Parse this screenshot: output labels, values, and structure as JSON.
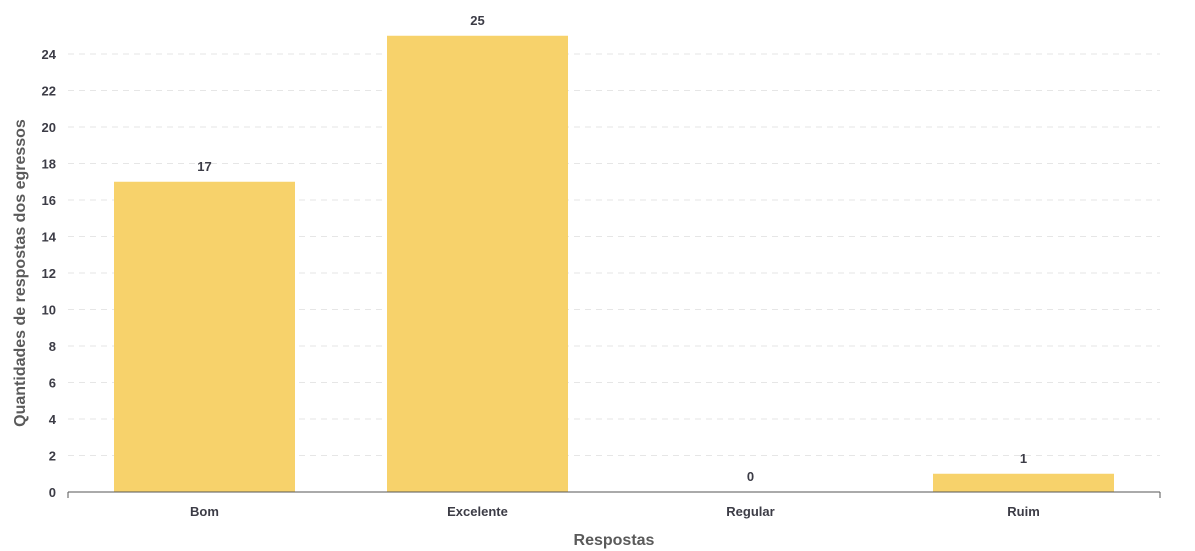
{
  "chart_data": {
    "type": "bar",
    "categories": [
      "Bom",
      "Excelente",
      "Regular",
      "Ruim"
    ],
    "values": [
      17,
      25,
      0,
      1
    ],
    "title": "",
    "xlabel": "Respostas",
    "ylabel": "Quantidades de respostas dos egressos",
    "ylim": [
      0,
      24
    ],
    "yticks": [
      0,
      2,
      4,
      6,
      8,
      10,
      12,
      14,
      16,
      18,
      20,
      22,
      24
    ],
    "grid": true,
    "legend": "none",
    "bar_color": "#f7d26b"
  }
}
